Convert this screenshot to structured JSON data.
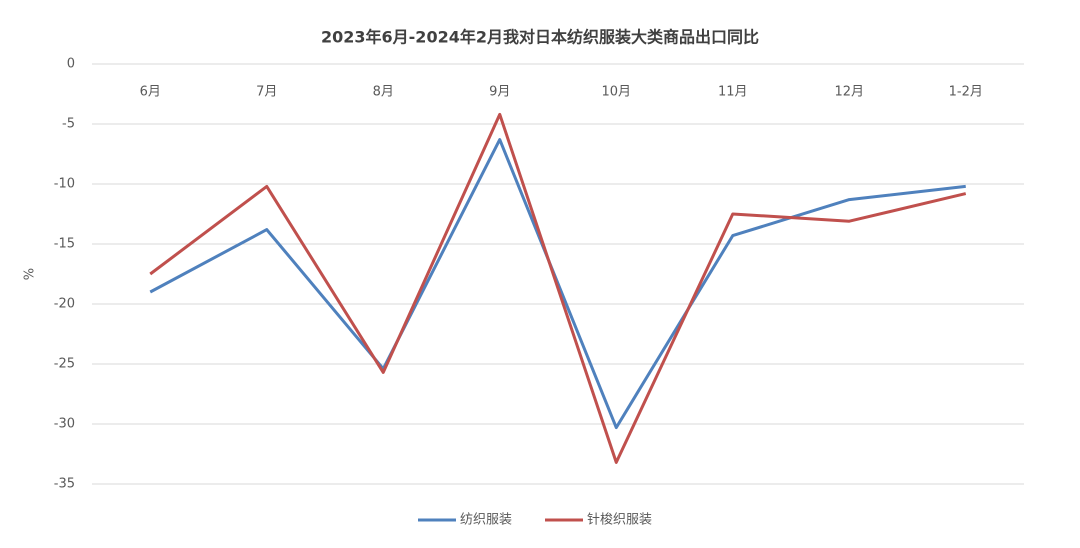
{
  "chart_data": {
    "type": "line",
    "title": "2023年6月-2024年2月我对日本纺织服装大类商品出口同比",
    "y_label": "%",
    "categories": [
      "6月",
      "7月",
      "8月",
      "9月",
      "10月",
      "11月",
      "12月",
      "1-2月"
    ],
    "series": [
      {
        "name": "纺织服装",
        "color": "#4f81bd",
        "values": [
          -19.0,
          -13.8,
          -25.4,
          -6.3,
          -30.3,
          -14.3,
          -11.3,
          -10.2
        ]
      },
      {
        "name": "针梭织服装",
        "color": "#c0504d",
        "values": [
          -17.5,
          -10.2,
          -25.7,
          -4.2,
          -33.2,
          -12.5,
          -13.1,
          -10.8
        ]
      }
    ],
    "ylim": [
      -35,
      0
    ],
    "yticks": [
      0,
      -5,
      -10,
      -15,
      -20,
      -25,
      -30,
      -35
    ],
    "grid": true,
    "legend": "bottom"
  }
}
